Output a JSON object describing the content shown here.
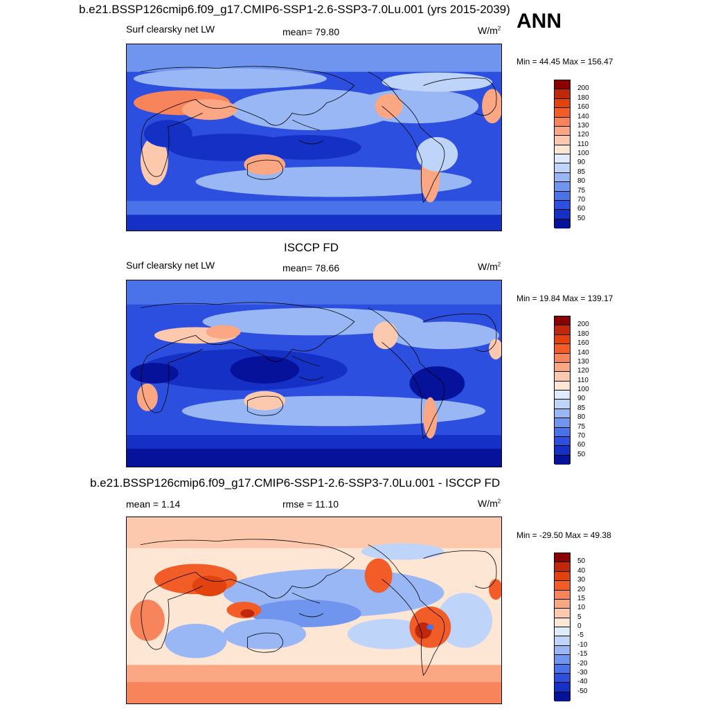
{
  "season": "ANN",
  "panels": [
    {
      "title": "b.e21.BSSP126cmip6.f09_g17.CMIP6-SSP1-2.6-SSP3-7.0Lu.001 (yrs 2015-2039)",
      "left_label": "Surf clearsky net LW",
      "center_label": "mean=  79.80",
      "units": "W/m",
      "units_sup": "2",
      "minmax": "Min =  44.45 Max = 156.47",
      "colorbar_labels": [
        "200",
        "180",
        "160",
        "140",
        "130",
        "120",
        "110",
        "100",
        "90",
        "85",
        "80",
        "75",
        "70",
        "60",
        "50"
      ],
      "colorbar_colors": [
        "#8b0000",
        "#c1270a",
        "#e2420e",
        "#f25c26",
        "#f7845a",
        "#fba784",
        "#fdc9ae",
        "#fde6d4",
        "#dfeafc",
        "#bed4f8",
        "#98b7f4",
        "#6f95ee",
        "#4a73ea",
        "#2c4fe0",
        "#1530c4",
        "#07129a"
      ]
    },
    {
      "title": "ISCCP FD",
      "left_label": "Surf clearsky net LW",
      "center_label": "mean=  78.66",
      "units": "W/m",
      "units_sup": "2",
      "minmax": "Min =  19.84 Max = 139.17",
      "colorbar_labels": [
        "200",
        "180",
        "160",
        "140",
        "130",
        "120",
        "110",
        "100",
        "90",
        "85",
        "80",
        "75",
        "70",
        "60",
        "50"
      ],
      "colorbar_colors": [
        "#8b0000",
        "#c1270a",
        "#e2420e",
        "#f25c26",
        "#f7845a",
        "#fba784",
        "#fdc9ae",
        "#fde6d4",
        "#dfeafc",
        "#bed4f8",
        "#98b7f4",
        "#6f95ee",
        "#4a73ea",
        "#2c4fe0",
        "#1530c4",
        "#07129a"
      ]
    },
    {
      "title": "b.e21.BSSP126cmip6.f09_g17.CMIP6-SSP1-2.6-SSP3-7.0Lu.001 - ISCCP FD",
      "left_label": "mean =   1.14",
      "center_label": "rmse =  11.10",
      "units": "W/m",
      "units_sup": "2",
      "minmax": "Min = -29.50 Max =  49.38",
      "colorbar_labels": [
        "50",
        "40",
        "30",
        "20",
        "15",
        "10",
        "5",
        "0",
        "-5",
        "-10",
        "-15",
        "-20",
        "-30",
        "-40",
        "-50"
      ],
      "colorbar_colors": [
        "#8b0000",
        "#c1270a",
        "#e2420e",
        "#f25c26",
        "#f7845a",
        "#fba784",
        "#fdc9ae",
        "#fde6d4",
        "#dfeafc",
        "#bed4f8",
        "#98b7f4",
        "#6f95ee",
        "#4a73ea",
        "#2c4fe0",
        "#1530c4",
        "#07129a"
      ]
    }
  ]
}
